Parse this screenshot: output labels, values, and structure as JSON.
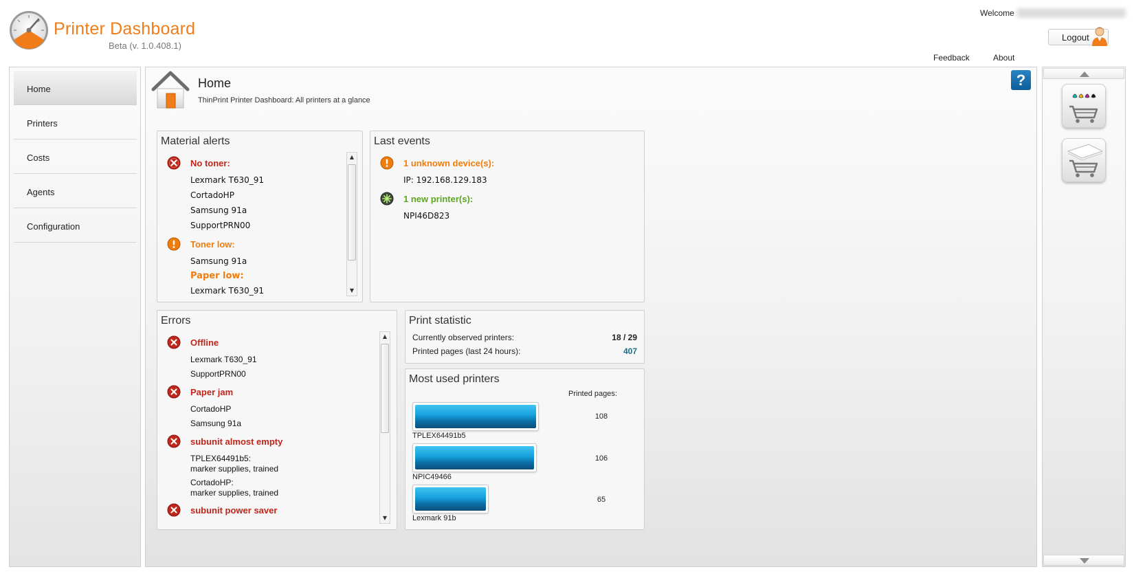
{
  "header": {
    "title": "Printer Dashboard",
    "version": "Beta (v. 1.0.408.1)",
    "welcome_label": "Welcome",
    "logout_label": "Logout",
    "feedback_label": "Feedback",
    "about_label": "About"
  },
  "sidebar": {
    "items": [
      {
        "label": "Home",
        "active": true
      },
      {
        "label": "Printers"
      },
      {
        "label": "Costs"
      },
      {
        "label": "Agents"
      },
      {
        "label": "Configuration"
      }
    ]
  },
  "page": {
    "title": "Home",
    "subtitle": "ThinPrint Printer Dashboard: All printers at a glance",
    "help_label": "?"
  },
  "material_alerts": {
    "title": "Material alerts",
    "groups": [
      {
        "head": "No toner:",
        "severity": "error",
        "items": [
          "Lexmark T630_91",
          "CortadoHP",
          "Samsung 91a",
          "SupportPRN00"
        ]
      },
      {
        "head": "Toner low:",
        "severity": "warning",
        "items": [
          "Samsung 91a"
        ]
      },
      {
        "head": "Paper low:",
        "severity": "warning",
        "items": [
          "Lexmark T630_91"
        ]
      }
    ]
  },
  "last_events": {
    "title": "Last events",
    "events": [
      {
        "head": "1 unknown device(s):",
        "severity": "warning",
        "detail": "IP: 192.168.129.183"
      },
      {
        "head": "1 new printer(s):",
        "severity": "new",
        "detail": "NPI46D823"
      }
    ]
  },
  "errors": {
    "title": "Errors",
    "groups": [
      {
        "head": "Offline",
        "items": [
          "Lexmark T630_91",
          "SupportPRN00"
        ]
      },
      {
        "head": "Paper jam",
        "items": [
          "CortadoHP",
          "Samsung 91a"
        ]
      },
      {
        "head": "subunit almost empty",
        "items": [
          "TPLEX64491b5:",
          "marker supplies, trained",
          "CortadoHP:",
          "marker supplies, trained"
        ]
      },
      {
        "head": "subunit power saver",
        "items": []
      }
    ]
  },
  "print_statistic": {
    "title": "Print statistic",
    "observed_label": "Currently observed printers:",
    "observed_value": "18 / 29",
    "pages_label": "Printed pages (last 24 hours):",
    "pages_value": "407",
    "pages_color": "#1a6f8a"
  },
  "most_used": {
    "title": "Most used printers",
    "column_label": "Printed pages:",
    "printers": [
      {
        "name": "TPLEX64491b5",
        "pages": 108
      },
      {
        "name": "NPIC49466",
        "pages": 106
      },
      {
        "name": "Lexmark 91b",
        "pages": 65
      }
    ]
  },
  "icons": {
    "logo": "gauge-icon",
    "home": "house-icon",
    "shop_toner": "toner-cart-icon",
    "shop_paper": "paper-cart-icon"
  },
  "colors": {
    "brand": "#f07d1a",
    "error": "#c0251a",
    "warning": "#ef7d0d",
    "success": "#5aa61c",
    "help": "#1e73b0"
  }
}
